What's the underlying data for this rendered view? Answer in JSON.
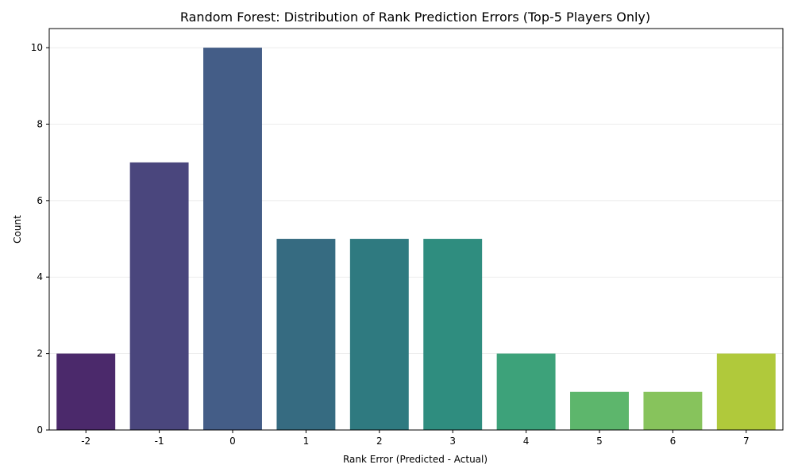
{
  "chart_data": {
    "type": "bar",
    "title": "Random Forest: Distribution of Rank Prediction Errors (Top-5 Players Only)",
    "xlabel": "Rank Error (Predicted - Actual)",
    "ylabel": "Count",
    "categories": [
      "-2",
      "-1",
      "0",
      "1",
      "2",
      "3",
      "4",
      "5",
      "6",
      "7"
    ],
    "values": [
      2,
      7,
      10,
      5,
      5,
      5,
      2,
      1,
      1,
      2
    ],
    "colors": [
      "#4b296b",
      "#4a467d",
      "#445d87",
      "#366b81",
      "#2f7a80",
      "#2f8d7f",
      "#3da27a",
      "#5db66c",
      "#87c35c",
      "#b0c93b"
    ],
    "ylim": [
      0,
      10.5
    ],
    "yticks": [
      0,
      2,
      4,
      6,
      8,
      10
    ],
    "grid": "y",
    "legend": "none"
  }
}
